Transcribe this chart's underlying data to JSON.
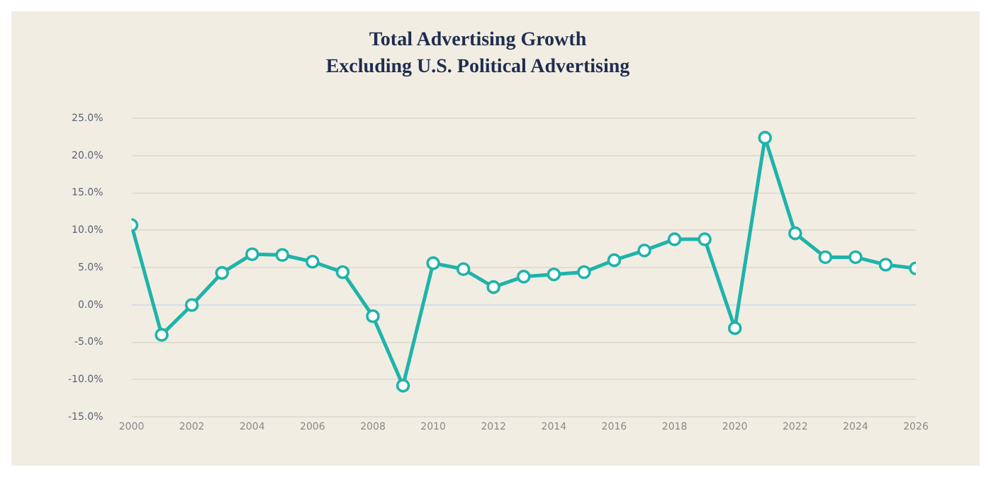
{
  "chart_data": {
    "type": "line",
    "title": "Total Advertising Growth",
    "subtitle": "Excluding U.S. Political Advertising",
    "x": [
      2000,
      2001,
      2002,
      2003,
      2004,
      2005,
      2006,
      2007,
      2008,
      2009,
      2010,
      2011,
      2012,
      2013,
      2014,
      2015,
      2016,
      2017,
      2018,
      2019,
      2020,
      2021,
      2022,
      2023,
      2024,
      2025,
      2026
    ],
    "series": [
      {
        "color": "#1fb3aa",
        "values": [
          10.7,
          -4.0,
          0.0,
          4.3,
          6.8,
          6.7,
          5.8,
          4.4,
          -1.5,
          -10.8,
          5.6,
          4.8,
          2.4,
          3.8,
          4.1,
          4.4,
          6.0,
          7.3,
          8.8,
          8.8,
          -3.1,
          22.4,
          9.6,
          6.4,
          6.4,
          5.4,
          4.9
        ]
      }
    ],
    "xlim": [
      2000,
      2026
    ],
    "xticks": [
      2000,
      2002,
      2004,
      2006,
      2008,
      2010,
      2012,
      2014,
      2016,
      2018,
      2020,
      2022,
      2024,
      2026
    ],
    "ylim": [
      -15,
      25
    ],
    "yticks": [
      {
        "value": -15,
        "label": "-15.0%"
      },
      {
        "value": -10,
        "label": "-10.0%"
      },
      {
        "value": -5,
        "label": "-5.0%"
      },
      {
        "value": 0,
        "label": "0.0%"
      },
      {
        "value": 5,
        "label": "5.0%"
      },
      {
        "value": 10,
        "label": "10.0%"
      },
      {
        "value": 15,
        "label": "15.0%"
      },
      {
        "value": 20,
        "label": "20.0%"
      },
      {
        "value": 25,
        "label": "25.0%"
      }
    ],
    "grid": "y",
    "legend": false,
    "marker": "circle",
    "line_style": "solid"
  }
}
